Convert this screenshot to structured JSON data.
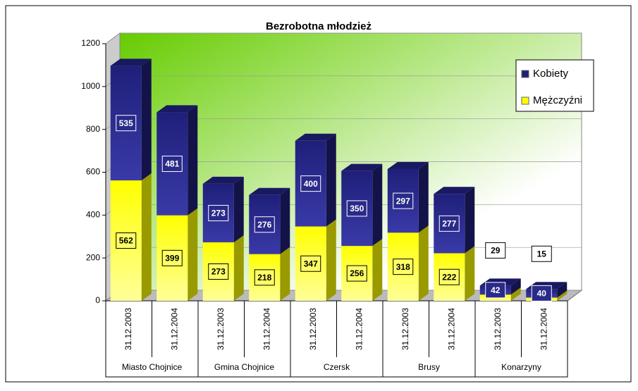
{
  "chart_data": {
    "type": "bar",
    "stacked": true,
    "title": "Bezrobotna młodzież",
    "categories": [
      "31.12.2003",
      "31.12.2004",
      "31.12.2003",
      "31.12.2004",
      "31.12.2003",
      "31.12.2004",
      "31.12.2003",
      "31.12.2004",
      "31.12.2003",
      "31.12.2004"
    ],
    "groups": [
      "Miasto Chojnice",
      "Gmina Chojnice",
      "Czersk",
      "Brusy",
      "Konarzyny"
    ],
    "series": [
      {
        "name": "Mężczyźni",
        "color": "#ffff00",
        "values": [
          562,
          399,
          273,
          218,
          347,
          256,
          318,
          222,
          29,
          15
        ]
      },
      {
        "name": "Kobiety",
        "color": "#1f1f7a",
        "values": [
          535,
          481,
          273,
          276,
          400,
          350,
          297,
          277,
          42,
          40
        ]
      }
    ],
    "ylim": [
      0,
      1200
    ],
    "yticks": [
      0,
      200,
      400,
      600,
      800,
      1000,
      1200
    ],
    "grid": true,
    "legend": "right"
  }
}
